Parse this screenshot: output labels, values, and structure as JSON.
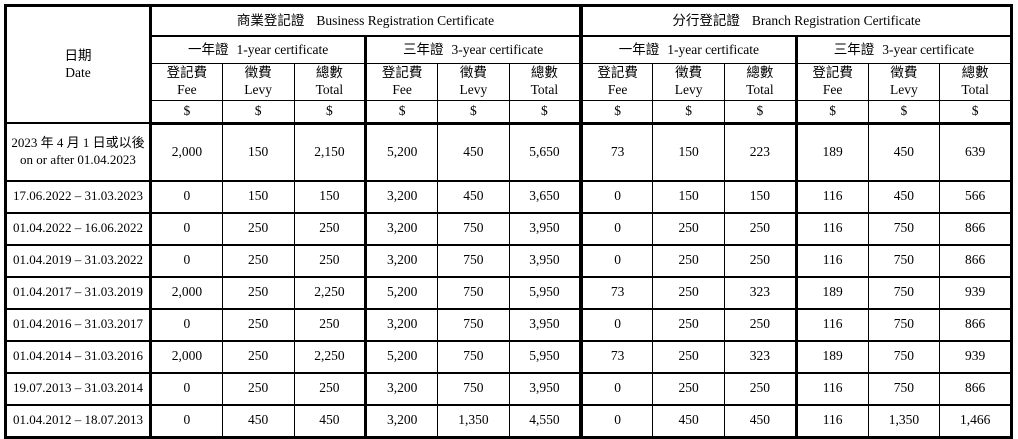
{
  "table": {
    "date_header": {
      "zh": "日期",
      "en": "Date"
    },
    "sections": [
      {
        "zh": "商業登記證",
        "en": "Business Registration Certificate"
      },
      {
        "zh": "分行登記證",
        "en": "Branch Registration Certificate"
      }
    ],
    "cert_types": [
      {
        "zh": "一年證",
        "en": "1-year certificate"
      },
      {
        "zh": "三年證",
        "en": "3-year certificate"
      }
    ],
    "columns": {
      "fee": {
        "zh": "登記費",
        "en": "Fee"
      },
      "levy": {
        "zh": "徵費",
        "en": "Levy"
      },
      "total": {
        "zh": "總數",
        "en": "Total"
      }
    },
    "currency": "$",
    "rows": [
      {
        "date_lines": [
          "2023 年 4 月 1 日或以後",
          "on or after 01.04.2023"
        ],
        "values": [
          "2,000",
          "150",
          "2,150",
          "5,200",
          "450",
          "5,650",
          "73",
          "150",
          "223",
          "189",
          "450",
          "639"
        ]
      },
      {
        "date_lines": [
          "17.06.2022 – 31.03.2023"
        ],
        "values": [
          "0",
          "150",
          "150",
          "3,200",
          "450",
          "3,650",
          "0",
          "150",
          "150",
          "116",
          "450",
          "566"
        ]
      },
      {
        "date_lines": [
          "01.04.2022 – 16.06.2022"
        ],
        "values": [
          "0",
          "250",
          "250",
          "3,200",
          "750",
          "3,950",
          "0",
          "250",
          "250",
          "116",
          "750",
          "866"
        ]
      },
      {
        "date_lines": [
          "01.04.2019 – 31.03.2022"
        ],
        "values": [
          "0",
          "250",
          "250",
          "3,200",
          "750",
          "3,950",
          "0",
          "250",
          "250",
          "116",
          "750",
          "866"
        ]
      },
      {
        "date_lines": [
          "01.04.2017 – 31.03.2019"
        ],
        "values": [
          "2,000",
          "250",
          "2,250",
          "5,200",
          "750",
          "5,950",
          "73",
          "250",
          "323",
          "189",
          "750",
          "939"
        ]
      },
      {
        "date_lines": [
          "01.04.2016 – 31.03.2017"
        ],
        "values": [
          "0",
          "250",
          "250",
          "3,200",
          "750",
          "3,950",
          "0",
          "250",
          "250",
          "116",
          "750",
          "866"
        ]
      },
      {
        "date_lines": [
          "01.04.2014 – 31.03.2016"
        ],
        "values": [
          "2,000",
          "250",
          "2,250",
          "5,200",
          "750",
          "5,950",
          "73",
          "250",
          "323",
          "189",
          "750",
          "939"
        ]
      },
      {
        "date_lines": [
          "19.07.2013 – 31.03.2014"
        ],
        "values": [
          "0",
          "250",
          "250",
          "3,200",
          "750",
          "3,950",
          "0",
          "250",
          "250",
          "116",
          "750",
          "866"
        ]
      },
      {
        "date_lines": [
          "01.04.2012 – 18.07.2013"
        ],
        "values": [
          "0",
          "450",
          "450",
          "3,200",
          "1,350",
          "4,550",
          "0",
          "450",
          "450",
          "116",
          "1,350",
          "1,466"
        ]
      }
    ]
  }
}
